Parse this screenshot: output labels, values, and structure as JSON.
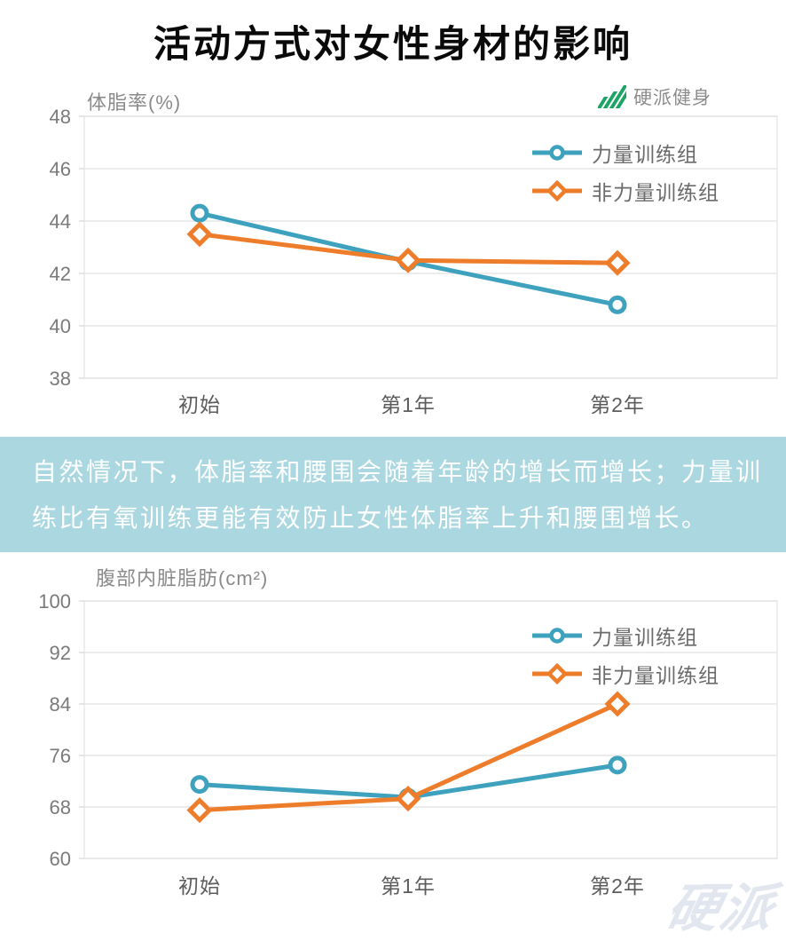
{
  "page": {
    "title": "活动方式对女性身材的影响",
    "brand": {
      "name": "硬派健身"
    },
    "watermark": "硬派"
  },
  "banner": {
    "text_line1": "自然情况下，体脂率和腰围会随着年龄的增长而增长；力量训",
    "text_line2": "练比有氧训练更能有效防止女性体脂率上升和腰围增长。"
  },
  "colors": {
    "strength_series": "#3EA1BE",
    "non_strength_series": "#EE7D2B",
    "banner_bg": "#AAD7E0",
    "brand_green": "#1CA464",
    "axis_tick_text": "#7A7A7A",
    "category_text": "#5C5C5C",
    "gridline": "#ECECEC",
    "plot_border": "#E8E8E8",
    "watermark": "#E1E6EF",
    "title_text": "#0A0A0A"
  },
  "chart_data": [
    {
      "type": "line",
      "title": "体脂率(%)",
      "categories": [
        "初始",
        "第1年",
        "第2年"
      ],
      "series": [
        {
          "name": "力量训练组",
          "marker": "circle",
          "color": "#3EA1BE",
          "values": [
            44.3,
            42.45,
            40.8
          ]
        },
        {
          "name": "非力量训练组",
          "marker": "diamond",
          "color": "#EE7D2B",
          "values": [
            43.5,
            42.5,
            42.4
          ]
        }
      ],
      "ylim": [
        38,
        48
      ],
      "yticks": [
        48,
        46,
        44,
        42,
        40,
        38
      ],
      "grid": true,
      "legend_position": "top-right"
    },
    {
      "type": "line",
      "title": "腹部内脏脂肪(cm²)",
      "categories": [
        "初始",
        "第1年",
        "第2年"
      ],
      "series": [
        {
          "name": "力量训练组",
          "marker": "circle",
          "color": "#3EA1BE",
          "values": [
            71.5,
            69.5,
            74.5
          ]
        },
        {
          "name": "非力量训练组",
          "marker": "diamond",
          "color": "#EE7D2B",
          "values": [
            67.5,
            69.3,
            84
          ]
        }
      ],
      "ylim": [
        60,
        100
      ],
      "yticks": [
        100,
        92,
        84,
        76,
        68,
        60
      ],
      "grid": true,
      "legend_position": "top-right"
    }
  ]
}
